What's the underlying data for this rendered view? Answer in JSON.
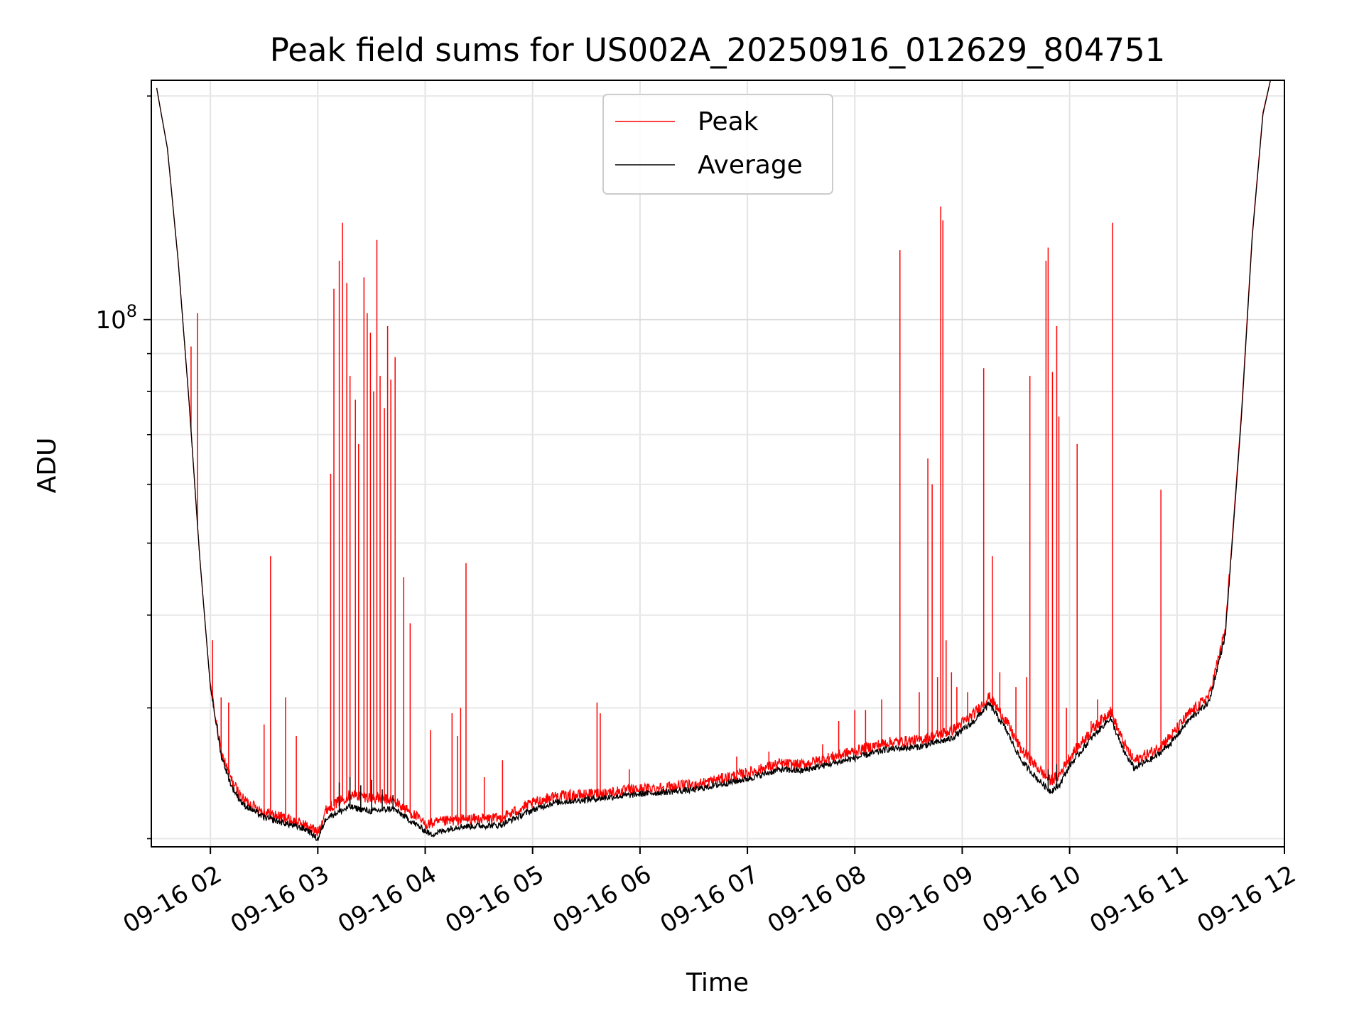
{
  "chart_data": {
    "type": "line",
    "title": "Peak field sums for US002A_20250916_012629_804751",
    "xlabel": "Time",
    "ylabel": "ADU",
    "x_unit": "hours",
    "xlim": [
      1.45,
      12.0
    ],
    "ylim": [
      19500000,
      210000000
    ],
    "yscale": "log",
    "grid": true,
    "legend_position": "upper center",
    "x_ticks": [
      {
        "value": 2,
        "label": "09-16 02"
      },
      {
        "value": 3,
        "label": "09-16 03"
      },
      {
        "value": 4,
        "label": "09-16 04"
      },
      {
        "value": 5,
        "label": "09-16 05"
      },
      {
        "value": 6,
        "label": "09-16 06"
      },
      {
        "value": 7,
        "label": "09-16 07"
      },
      {
        "value": 8,
        "label": "09-16 08"
      },
      {
        "value": 9,
        "label": "09-16 09"
      },
      {
        "value": 10,
        "label": "09-16 10"
      },
      {
        "value": 11,
        "label": "09-16 11"
      },
      {
        "value": 12,
        "label": "09-16 12"
      }
    ],
    "y_major_ticks": [
      {
        "value": 100000000,
        "base": "10",
        "exp": "8"
      }
    ],
    "y_minor_ticks": [
      20000000,
      30000000,
      40000000,
      50000000,
      60000000,
      70000000,
      80000000,
      90000000,
      200000000
    ],
    "series": [
      {
        "name": "Peak",
        "color": "#ff0000",
        "baseline": [
          [
            1.5,
            205000000
          ],
          [
            1.6,
            170000000
          ],
          [
            1.7,
            120000000
          ],
          [
            1.8,
            78000000
          ],
          [
            1.9,
            48000000
          ],
          [
            2.0,
            32000000
          ],
          [
            2.1,
            26000000
          ],
          [
            2.2,
            23800000
          ],
          [
            2.3,
            22500000
          ],
          [
            2.5,
            21600000
          ],
          [
            2.7,
            21200000
          ],
          [
            2.9,
            20700000
          ],
          [
            3.0,
            20300000
          ],
          [
            3.08,
            21800000
          ],
          [
            3.3,
            22800000
          ],
          [
            3.5,
            22600000
          ],
          [
            3.7,
            22400000
          ],
          [
            3.9,
            21400000
          ],
          [
            4.0,
            20800000
          ],
          [
            4.3,
            21100000
          ],
          [
            4.7,
            21200000
          ],
          [
            5.0,
            22200000
          ],
          [
            5.2,
            22700000
          ],
          [
            5.5,
            22800000
          ],
          [
            6.0,
            23200000
          ],
          [
            6.5,
            23500000
          ],
          [
            7.0,
            24400000
          ],
          [
            7.3,
            25100000
          ],
          [
            7.5,
            25000000
          ],
          [
            8.0,
            26100000
          ],
          [
            8.3,
            26800000
          ],
          [
            8.6,
            27000000
          ],
          [
            8.9,
            27800000
          ],
          [
            9.1,
            29200000
          ],
          [
            9.25,
            30900000
          ],
          [
            9.4,
            28800000
          ],
          [
            9.55,
            26200000
          ],
          [
            9.7,
            24800000
          ],
          [
            9.82,
            23800000
          ],
          [
            9.9,
            24200000
          ],
          [
            10.0,
            25600000
          ],
          [
            10.2,
            27800000
          ],
          [
            10.38,
            29600000
          ],
          [
            10.5,
            26800000
          ],
          [
            10.6,
            25300000
          ],
          [
            10.8,
            26200000
          ],
          [
            10.95,
            27400000
          ],
          [
            11.1,
            29200000
          ],
          [
            11.3,
            31000000
          ],
          [
            11.45,
            38000000
          ],
          [
            11.6,
            75000000
          ],
          [
            11.7,
            130000000
          ],
          [
            11.8,
            190000000
          ],
          [
            11.87,
            210000000
          ]
        ],
        "spikes": [
          [
            1.82,
            92000000
          ],
          [
            1.88,
            102000000
          ],
          [
            2.02,
            37000000
          ],
          [
            2.1,
            31000000
          ],
          [
            2.17,
            30500000
          ],
          [
            2.5,
            28500000
          ],
          [
            2.56,
            48000000
          ],
          [
            2.7,
            31000000
          ],
          [
            2.8,
            27500000
          ],
          [
            3.12,
            62000000
          ],
          [
            3.15,
            110000000
          ],
          [
            3.2,
            120000000
          ],
          [
            3.23,
            135000000
          ],
          [
            3.27,
            112000000
          ],
          [
            3.3,
            84000000
          ],
          [
            3.35,
            78000000
          ],
          [
            3.38,
            68000000
          ],
          [
            3.43,
            114000000
          ],
          [
            3.46,
            102000000
          ],
          [
            3.49,
            96000000
          ],
          [
            3.52,
            80000000
          ],
          [
            3.55,
            128000000
          ],
          [
            3.58,
            84000000
          ],
          [
            3.62,
            76000000
          ],
          [
            3.65,
            98000000
          ],
          [
            3.68,
            83000000
          ],
          [
            3.72,
            89000000
          ],
          [
            3.8,
            45000000
          ],
          [
            3.86,
            39000000
          ],
          [
            4.05,
            28000000
          ],
          [
            4.25,
            29500000
          ],
          [
            4.3,
            27500000
          ],
          [
            4.33,
            30000000
          ],
          [
            4.38,
            47000000
          ],
          [
            4.55,
            24200000
          ],
          [
            4.72,
            25500000
          ],
          [
            5.6,
            30500000
          ],
          [
            5.63,
            29500000
          ],
          [
            5.9,
            24800000
          ],
          [
            6.9,
            25800000
          ],
          [
            7.2,
            26200000
          ],
          [
            7.7,
            26800000
          ],
          [
            7.85,
            28800000
          ],
          [
            8.0,
            29800000
          ],
          [
            8.1,
            29800000
          ],
          [
            8.25,
            30800000
          ],
          [
            8.42,
            124000000
          ],
          [
            8.6,
            31500000
          ],
          [
            8.68,
            65000000
          ],
          [
            8.72,
            60000000
          ],
          [
            8.77,
            33000000
          ],
          [
            8.8,
            142000000
          ],
          [
            8.82,
            136000000
          ],
          [
            8.85,
            37000000
          ],
          [
            8.9,
            33500000
          ],
          [
            8.95,
            32000000
          ],
          [
            9.05,
            31500000
          ],
          [
            9.2,
            86000000
          ],
          [
            9.28,
            48000000
          ],
          [
            9.35,
            33500000
          ],
          [
            9.5,
            32000000
          ],
          [
            9.6,
            33000000
          ],
          [
            9.63,
            84000000
          ],
          [
            9.78,
            120000000
          ],
          [
            9.8,
            125000000
          ],
          [
            9.84,
            85000000
          ],
          [
            9.88,
            98000000
          ],
          [
            9.9,
            74000000
          ],
          [
            9.97,
            30000000
          ],
          [
            10.07,
            68000000
          ],
          [
            10.2,
            28800000
          ],
          [
            10.26,
            30800000
          ],
          [
            10.4,
            135000000
          ],
          [
            10.85,
            59000000
          ]
        ]
      },
      {
        "name": "Average",
        "color": "#000000",
        "baseline": [
          [
            1.5,
            205000000
          ],
          [
            1.6,
            170000000
          ],
          [
            1.7,
            120000000
          ],
          [
            1.8,
            78000000
          ],
          [
            1.9,
            48000000
          ],
          [
            2.0,
            32000000
          ],
          [
            2.1,
            25800000
          ],
          [
            2.2,
            23400000
          ],
          [
            2.3,
            22200000
          ],
          [
            2.5,
            21300000
          ],
          [
            2.7,
            20900000
          ],
          [
            2.9,
            20500000
          ],
          [
            3.0,
            19900000
          ],
          [
            3.08,
            21300000
          ],
          [
            3.3,
            22000000
          ],
          [
            3.5,
            21700000
          ],
          [
            3.7,
            21900000
          ],
          [
            3.9,
            20900000
          ],
          [
            4.05,
            20200000
          ],
          [
            4.3,
            20700000
          ],
          [
            4.7,
            20800000
          ],
          [
            5.0,
            21800000
          ],
          [
            5.2,
            22300000
          ],
          [
            5.5,
            22500000
          ],
          [
            6.0,
            22900000
          ],
          [
            6.5,
            23200000
          ],
          [
            7.0,
            24000000
          ],
          [
            7.3,
            24700000
          ],
          [
            7.5,
            24600000
          ],
          [
            8.0,
            25600000
          ],
          [
            8.3,
            26300000
          ],
          [
            8.6,
            26500000
          ],
          [
            8.9,
            27200000
          ],
          [
            9.1,
            28600000
          ],
          [
            9.25,
            30300000
          ],
          [
            9.4,
            28100000
          ],
          [
            9.55,
            25400000
          ],
          [
            9.7,
            24000000
          ],
          [
            9.82,
            23100000
          ],
          [
            9.9,
            23500000
          ],
          [
            10.0,
            25000000
          ],
          [
            10.2,
            27200000
          ],
          [
            10.38,
            29000000
          ],
          [
            10.5,
            26200000
          ],
          [
            10.6,
            24800000
          ],
          [
            10.8,
            25700000
          ],
          [
            10.95,
            26900000
          ],
          [
            11.1,
            28700000
          ],
          [
            11.3,
            30500000
          ],
          [
            11.45,
            37500000
          ],
          [
            11.6,
            74000000
          ],
          [
            11.7,
            129000000
          ],
          [
            11.8,
            189000000
          ],
          [
            11.87,
            210000000
          ]
        ],
        "spikes": [
          [
            3.2,
            23800000
          ],
          [
            3.3,
            24200000
          ],
          [
            3.4,
            23600000
          ],
          [
            3.5,
            24000000
          ],
          [
            3.6,
            23300000
          ],
          [
            3.7,
            22900000
          ],
          [
            9.8,
            24800000
          ],
          [
            9.88,
            25200000
          ]
        ]
      }
    ]
  }
}
